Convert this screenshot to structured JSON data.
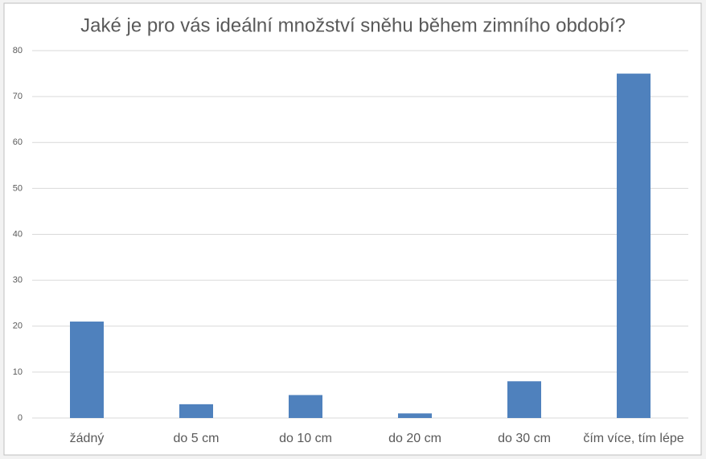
{
  "chart_data": {
    "type": "bar",
    "title": "Jaké je pro vás ideální množství sněhu během zimního období?",
    "categories": [
      "žádný",
      "do 5 cm",
      "do 10 cm",
      "do 20 cm",
      "do 30 cm",
      "čím více, tím lépe"
    ],
    "values": [
      21,
      3,
      5,
      1,
      8,
      75
    ],
    "color": "#4f81bd",
    "ylim": [
      0,
      80
    ],
    "yticks": [
      0,
      10,
      20,
      30,
      40,
      50,
      60,
      70,
      80
    ],
    "grid": true
  }
}
